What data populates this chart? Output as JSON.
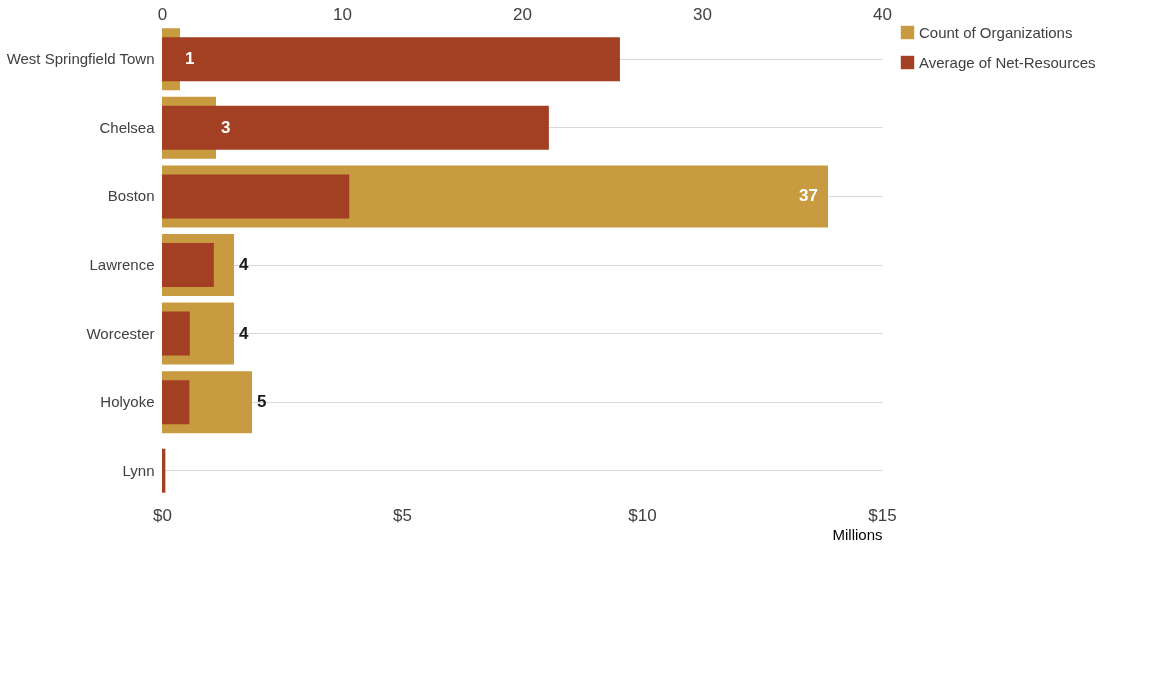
{
  "chart_data": {
    "type": "bar",
    "orientation": "horizontal",
    "categories": [
      "West Springfield Town",
      "Chelsea",
      "Boston",
      "Lawrence",
      "Worcester",
      "Holyoke",
      "Lynn"
    ],
    "series": [
      {
        "name": "Count of Organizations",
        "color": "#c99b40",
        "axis": "x2",
        "values": [
          1,
          3,
          37,
          4,
          4,
          5,
          null
        ],
        "data_labels": true
      },
      {
        "name": "Average of Net-Resources",
        "color": "#a33f22",
        "values": [
          9.54,
          8.06,
          3.9,
          1.08,
          0.58,
          0.57,
          0.07
        ]
      }
    ],
    "xlim": [
      0,
      15
    ],
    "xticks": [
      {
        "value": 0,
        "label": "$0"
      },
      {
        "value": 5,
        "label": "$5"
      },
      {
        "value": 10,
        "label": "$10"
      },
      {
        "value": 15,
        "label": "$15"
      }
    ],
    "xlabel": "Millions",
    "x2lim": [
      0,
      40
    ],
    "x2ticks": [
      0,
      10,
      20,
      30,
      40
    ],
    "grid": "y",
    "legend": "right"
  }
}
